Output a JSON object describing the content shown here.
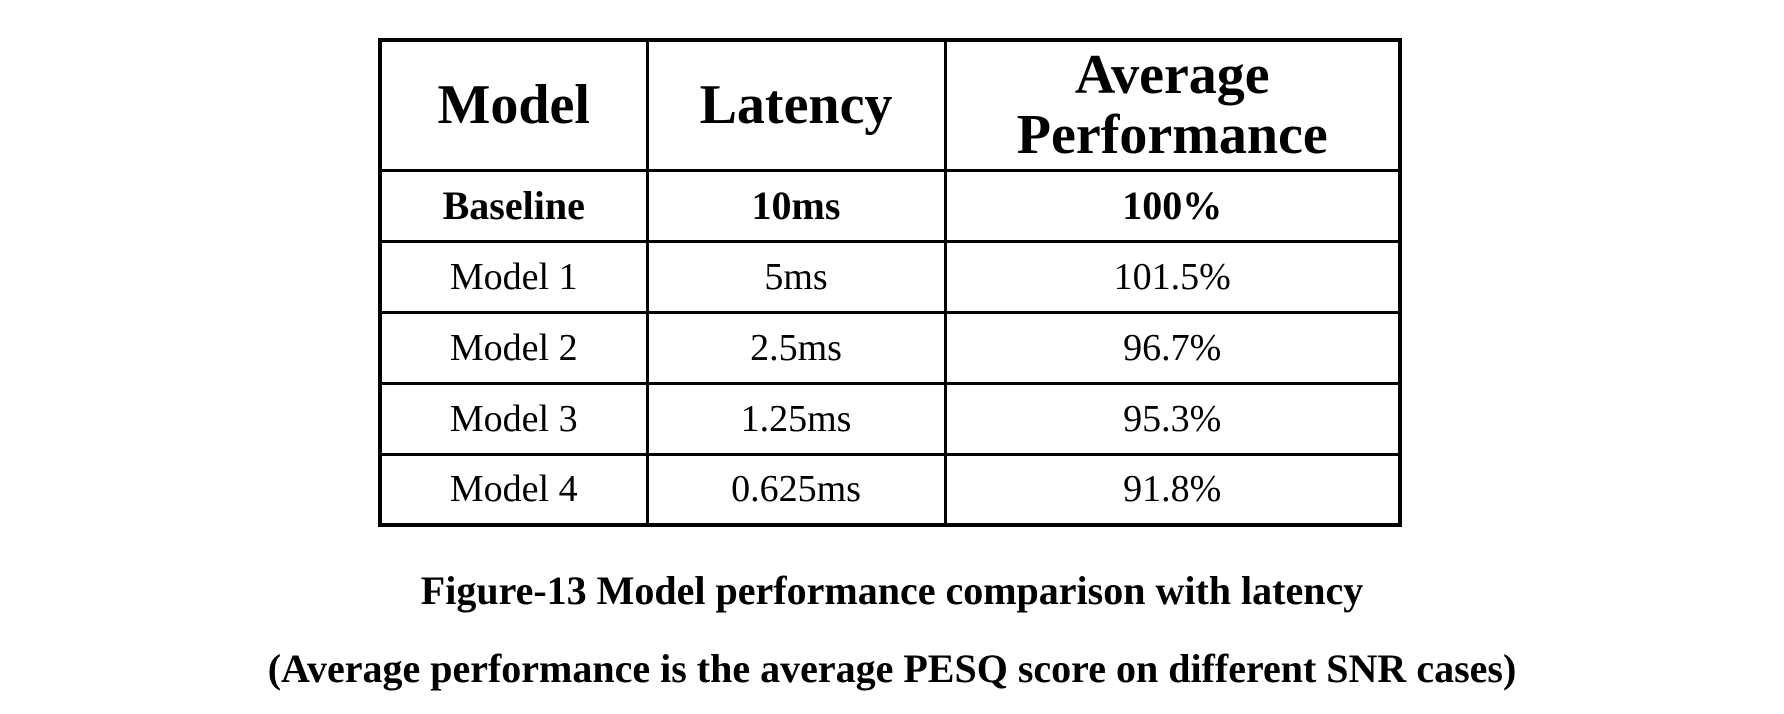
{
  "table": {
    "headers": [
      "Model",
      "Latency",
      "Average\nPerformance"
    ],
    "rows": [
      {
        "model": "Baseline",
        "latency": "10ms",
        "performance": "100%"
      },
      {
        "model": "Model 1",
        "latency": "5ms",
        "performance": "101.5%"
      },
      {
        "model": "Model 2",
        "latency": "2.5ms",
        "performance": "96.7%"
      },
      {
        "model": "Model 3",
        "latency": "1.25ms",
        "performance": "95.3%"
      },
      {
        "model": "Model 4",
        "latency": "0.625ms",
        "performance": "91.8%"
      }
    ]
  },
  "caption": {
    "line1": "Figure-13 Model performance comparison with latency",
    "line2": "(Average performance is the average PESQ score on different SNR cases)"
  },
  "colors": {
    "text": "#000000",
    "border": "#000000",
    "background": "#ffffff"
  }
}
